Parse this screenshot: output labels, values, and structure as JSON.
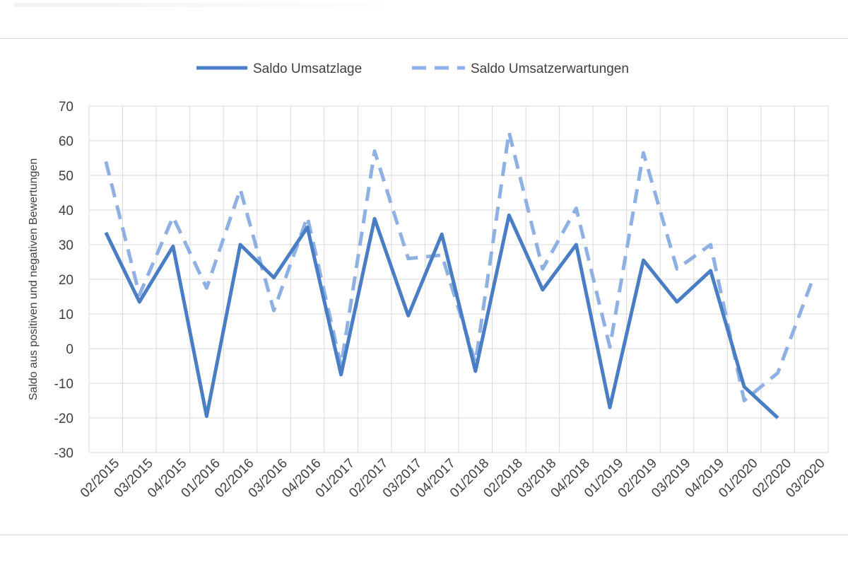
{
  "chart_data": {
    "type": "line",
    "title": "",
    "xlabel": "",
    "ylabel": "Saldo aus positiven und negativen Bewertungen",
    "ylim": [
      -30,
      70
    ],
    "yticks": [
      "70",
      "60",
      "50",
      "40",
      "30",
      "20",
      "10",
      "0",
      "-10",
      "-20",
      "-30"
    ],
    "grid": true,
    "legend_position": "top",
    "categories": [
      "02/2015",
      "03/2015",
      "04/2015",
      "01/2016",
      "02/2016",
      "03/2016",
      "04/2016",
      "01/2017",
      "02/2017",
      "03/2017",
      "04/2017",
      "01/2018",
      "02/2018",
      "03/2018",
      "04/2018",
      "01/2019",
      "02/2019",
      "03/2019",
      "04/2019",
      "01/2020",
      "02/2020",
      "03/2020"
    ],
    "series": [
      {
        "name": "Saldo Umsatzlage",
        "style": "solid",
        "color": "#4a7ec4",
        "values": [
          33.5,
          13.5,
          29.5,
          -19.5,
          30,
          20.5,
          35,
          -7.5,
          37.5,
          9.5,
          33,
          -6.5,
          38.5,
          17,
          30,
          -17,
          25.5,
          13.5,
          22.5,
          -11,
          -20,
          null
        ]
      },
      {
        "name": "Saldo Umsatzerwartungen",
        "style": "dashed",
        "color": "#8fb0e2",
        "values": [
          54,
          15.5,
          38,
          17.5,
          46,
          11,
          38,
          -5,
          57,
          26,
          27,
          -4,
          62.5,
          23,
          40.5,
          0.5,
          56.5,
          23,
          30,
          -15,
          -7,
          19
        ]
      }
    ]
  }
}
